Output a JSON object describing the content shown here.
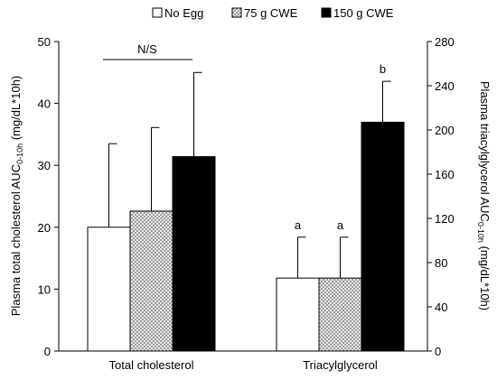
{
  "chart_data": {
    "type": "bar",
    "categories": [
      "Total cholesterol",
      "Triacylglycerol"
    ],
    "series": [
      {
        "name": "No Egg",
        "fill": "#ffffff",
        "pattern": "none"
      },
      {
        "name": "75 g CWE",
        "fill": "#ffffff",
        "pattern": "crosshatch"
      },
      {
        "name": "150 g CWE",
        "fill": "#000000",
        "pattern": "none"
      }
    ],
    "groups": [
      {
        "category": "Total cholesterol",
        "axis": "left",
        "values": [
          20.0,
          22.6,
          31.4
        ],
        "errors": [
          13.5,
          13.5,
          13.6
        ],
        "labels": [
          "",
          "",
          ""
        ],
        "annotation": "N/S"
      },
      {
        "category": "Triacylglycerol",
        "axis": "right",
        "values": [
          66,
          66,
          207
        ],
        "errors": [
          37,
          37,
          37
        ],
        "labels": [
          "a",
          "a",
          "b"
        ],
        "annotation": ""
      }
    ],
    "left_axis": {
      "label_main": "Plasma total cholesterol AUC",
      "label_sub": "0-10h",
      "label_unit": " (mg/dL*10h)",
      "ylim": [
        0,
        50
      ],
      "ticks": [
        "0",
        "10",
        "20",
        "30",
        "40",
        "50"
      ]
    },
    "right_axis": {
      "label_main": "Plasma triacylglycerol AUC",
      "label_sub": "0-10h",
      "label_unit": " (mg/dL*10h)",
      "ylim": [
        0,
        280
      ],
      "ticks": [
        "0",
        "40",
        "80",
        "120",
        "160",
        "200",
        "240",
        "280"
      ]
    },
    "legend": {
      "placement": "top",
      "entries": [
        "No Egg",
        "75 g CWE",
        "150 g CWE"
      ]
    },
    "grid": false
  }
}
